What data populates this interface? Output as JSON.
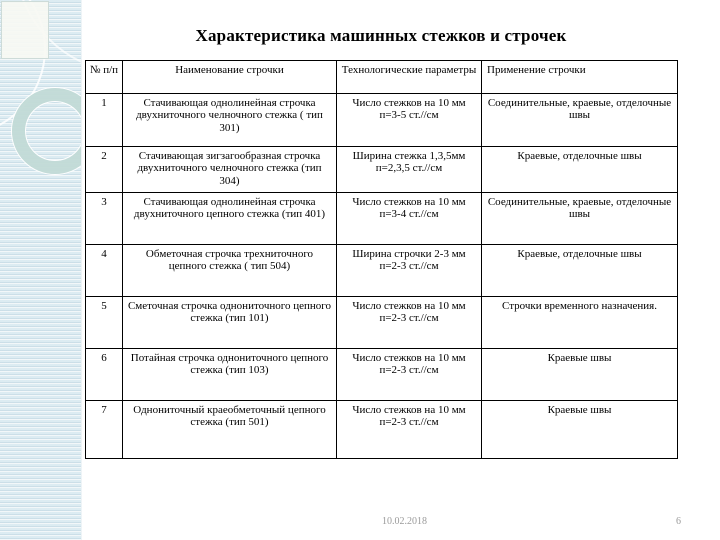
{
  "page": {
    "title": "Характеристика машинных стежков и строчек",
    "footer": {
      "date": "10.02.2018",
      "page_number": "6"
    }
  },
  "colors": {
    "sidebar_background": "#d9e8ef",
    "table_border": "#000000",
    "footer_text": "#9a9a9a",
    "text": "#000000"
  },
  "table": {
    "headers": {
      "num": "№ п/п",
      "name": "Наименование строчки",
      "params": "Технологические параметры",
      "application": "Применение строчки"
    },
    "rows": [
      {
        "num": "1",
        "name": "Стачивающая однолинейная строчка двухниточного челночного стежка ( тип 301)",
        "params1": "Число стежков на 10 мм",
        "params2": "п=3-5 ст.//см",
        "application": "Соединительные, краевые, отделочные швы"
      },
      {
        "num": "2",
        "name": "Стачивающая зигзагообразная строчка двухниточного челночного стежка (тип 304)",
        "params1": "Ширина стежка 1,3,5мм",
        "params2": "п=2,3,5 ст.//см",
        "application": "Краевые, отделочные швы"
      },
      {
        "num": "3",
        "name": "Стачивающая однолинейная строчка двухниточного цепного стежка (тип 401)",
        "params1": "Число стежков на 10 мм",
        "params2": "п=3-4 ст.//см",
        "application": "Соединительные, краевые, отделочные швы"
      },
      {
        "num": "4",
        "name": "Обметочная строчка трехниточного цепного стежка ( тип 504)",
        "params1": "Ширина строчки 2-3 мм",
        "params2": "п=2-3 ст.//см",
        "application": "Краевые, отделочные швы"
      },
      {
        "num": "5",
        "name": "Сметочная строчка однониточного цепного стежка (тип 101)",
        "params1": "Число стежков на 10 мм",
        "params2": "п=2-3 ст.//см",
        "application": "Строчки временного назначения."
      },
      {
        "num": "6",
        "name": "Потайная строчка однониточного цепного стежка (тип 103)",
        "params1": "Число стежков на 10 мм",
        "params2": "п=2-3 ст.//см",
        "application": "Краевые швы"
      },
      {
        "num": "7",
        "name": "Однониточный краеобметочный цепного стежка (тип 501)",
        "params1": "Число стежков на 10 мм",
        "params2": "п=2-3 ст.//см",
        "application": "Краевые швы"
      }
    ]
  }
}
